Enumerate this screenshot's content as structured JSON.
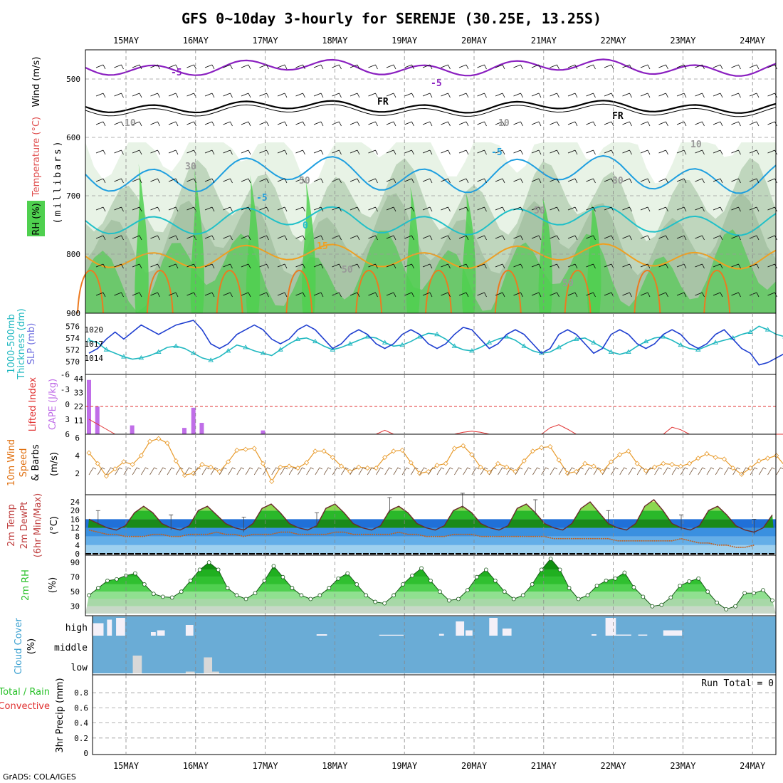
{
  "header": {
    "title": "GFS 0~10day 3-hourly for SERENJE (30.25E, 13.25S)",
    "credit": "GrADS: COLA/IGES"
  },
  "dates": [
    "15MAY",
    "16MAY",
    "17MAY",
    "18MAY",
    "19MAY",
    "20MAY",
    "21MAY",
    "22MAY",
    "23MAY",
    "24MAY"
  ],
  "colors": {
    "rh_green": "#4fd04f",
    "slp": "#1f3fd0",
    "thickness": "#20b8c0",
    "cape": "#c06ee8",
    "lifted": "#e03030",
    "wind": "#e89a2a",
    "rh2m": "#2ac12a",
    "cloud": "#6aacd6",
    "precip_total": "#2ac12a",
    "precip_conv": "#e03030"
  },
  "panels": {
    "upper": {
      "labels": [
        "Wind (m/s)",
        "Temperature (°C)",
        "RH (%)"
      ],
      "axis_label": "(millibars)",
      "ticks": [
        "500",
        "600",
        "700",
        "800",
        "900"
      ],
      "contour_labels": [
        "-5",
        "-5",
        "FR",
        "FR",
        "10",
        "10",
        "10",
        "-5",
        "-5",
        "0",
        "15",
        "30",
        "30",
        "50",
        "50",
        "50",
        "50"
      ]
    },
    "slp": {
      "labels": [
        "1000-500mb",
        "Thickness (dm)",
        "SLP (mb)"
      ],
      "left_ticks": [
        "576",
        "574",
        "572",
        "570"
      ],
      "right_ticks": [
        "1020",
        "1017",
        "1014"
      ]
    },
    "cape": {
      "labels": [
        "Lifted Index",
        "CAPE (J/kg)"
      ],
      "left_ticks": [
        "-6",
        "-3",
        "0",
        "3",
        "6"
      ],
      "right_ticks": [
        "44",
        "33",
        "22",
        "11"
      ]
    },
    "wind10": {
      "labels": [
        "10m Wind",
        "Speed",
        "& Barbs",
        "(m/s)"
      ],
      "ticks": [
        "6",
        "4",
        "2"
      ]
    },
    "temp2m": {
      "labels": [
        "2m Temp",
        "2m DewPt",
        "(6hr Min/Max)",
        "(°C)"
      ],
      "ticks": [
        "24",
        "20",
        "16",
        "12",
        "8",
        "4",
        "0"
      ]
    },
    "rh2m": {
      "labels": [
        "2m RH",
        "(%)"
      ],
      "ticks": [
        "90",
        "70",
        "50",
        "30"
      ]
    },
    "cloud": {
      "labels": [
        "Cloud Cover",
        "(%)"
      ],
      "levels": [
        "high",
        "middle",
        "low"
      ]
    },
    "precip": {
      "labels": [
        "Total / Rain",
        "Convective",
        "3hr Precip (mm)"
      ],
      "ticks": [
        "0.8",
        "0.6",
        "0.4",
        "0.2",
        "0"
      ],
      "run_total": "Run Total = 0"
    }
  },
  "chart_data": [
    {
      "type": "line",
      "name": "SLP (mb)",
      "x_unit": "hours from start (3-hourly)",
      "ylim": [
        1012,
        1022
      ],
      "values": [
        1015,
        1016,
        1018,
        1019.5,
        1018,
        1019.5,
        1021,
        1020,
        1019,
        1020,
        1021,
        1021.5,
        1022,
        1020,
        1017,
        1016,
        1017,
        1019,
        1020,
        1021,
        1020,
        1018,
        1017,
        1018,
        1020,
        1021,
        1020,
        1018,
        1016,
        1017,
        1019,
        1020,
        1019,
        1017,
        1016,
        1017,
        1019,
        1020,
        1019,
        1017,
        1016,
        1017,
        1019,
        1020.5,
        1020,
        1018,
        1016,
        1017,
        1019,
        1020,
        1019,
        1017,
        1015,
        1016,
        1019,
        1020,
        1019,
        1017,
        1015,
        1016,
        1019,
        1020,
        1019,
        1017,
        1016,
        1017,
        1019,
        1020,
        1019,
        1017,
        1016,
        1017,
        1019,
        1020,
        1018,
        1016,
        1015,
        1012.5,
        1013,
        1014,
        1015,
        1015.5,
        1016,
        1016.5
      ]
    },
    {
      "type": "line",
      "name": "1000-500mb Thickness (dm)",
      "ylim": [
        569,
        577
      ],
      "values": [
        573.6,
        573.2,
        572,
        571.4,
        570.8,
        570.4,
        570.6,
        571,
        571.6,
        572.4,
        572.6,
        572.2,
        571.4,
        570.6,
        570.2,
        570.8,
        571.8,
        572.8,
        572.4,
        571.8,
        571.4,
        571,
        572,
        573,
        573.8,
        574,
        573.4,
        572.6,
        572,
        572.4,
        573,
        573.6,
        574.2,
        574,
        573.2,
        572.6,
        572.8,
        573.4,
        574.2,
        574.8,
        574.6,
        573.8,
        572.6,
        572,
        571.8,
        572.4,
        573.2,
        573.8,
        574.2,
        573.6,
        572.6,
        571.8,
        571.4,
        571.6,
        572.4,
        573.2,
        573.8,
        574,
        573.2,
        572.4,
        571.6,
        571.2,
        571.6,
        572.6,
        573.4,
        574,
        574.2,
        573.6,
        572.8,
        572.2,
        572,
        572.6,
        573.2,
        573.6,
        574,
        574.6,
        575,
        576,
        575.4,
        574.6,
        574.2,
        574,
        574.4,
        575.6
      ]
    },
    {
      "type": "bar",
      "name": "CAPE (J/kg)",
      "ylim": [
        0,
        44
      ],
      "bars": [
        {
          "day": 0.0,
          "v": 43
        },
        {
          "day": 0.12,
          "v": 22
        },
        {
          "day": 0.62,
          "v": 7
        },
        {
          "day": 1.37,
          "v": 5
        },
        {
          "day": 1.5,
          "v": 21
        },
        {
          "day": 1.62,
          "v": 9
        },
        {
          "day": 2.5,
          "v": 3
        }
      ]
    },
    {
      "type": "line",
      "name": "Lifted Index",
      "ylim": [
        -6,
        6
      ],
      "values": [
        3,
        4,
        5,
        6,
        6,
        6,
        6,
        6,
        6,
        6,
        6,
        6,
        6,
        6,
        6,
        6,
        6,
        6,
        6,
        6,
        6,
        6,
        6,
        6,
        6,
        6,
        6,
        6,
        6,
        6,
        6,
        6,
        6,
        6,
        5.2,
        6,
        6,
        6,
        6,
        6,
        6,
        6,
        6,
        5.6,
        5.4,
        5.6,
        6,
        6,
        6,
        6,
        6,
        6,
        6,
        4.7,
        4.1,
        5,
        6,
        6,
        6,
        6,
        6,
        6,
        6,
        6,
        6,
        6,
        6,
        4.6,
        5.1,
        6,
        6,
        6,
        6,
        6,
        6,
        6,
        6,
        6,
        6,
        6,
        6,
        6,
        6,
        6
      ]
    },
    {
      "type": "line",
      "name": "10m Wind Speed (m/s)",
      "ylim": [
        0,
        6
      ],
      "values": [
        4.3,
        3.1,
        1.7,
        2.5,
        3.3,
        3,
        4,
        5.6,
        5.9,
        5.4,
        3.4,
        1.8,
        2,
        3,
        2.7,
        2.2,
        3.3,
        4.6,
        4.7,
        4.8,
        3.1,
        1.1,
        2.7,
        2.8,
        2.6,
        3.2,
        4.5,
        4.5,
        3.8,
        2.8,
        2.2,
        2.7,
        2.6,
        2.6,
        3.8,
        4.5,
        4.6,
        3.2,
        2,
        2.2,
        2.9,
        3.1,
        4.8,
        5.1,
        4.1,
        2.7,
        2.1,
        3.1,
        2.7,
        2.2,
        3.4,
        4.5,
        4.9,
        5,
        3.5,
        2,
        2.2,
        3.1,
        2.8,
        2.2,
        3.3,
        4.1,
        4.5,
        3.1,
        2.3,
        2.7,
        3.1,
        3,
        2.8,
        3.1,
        3.7,
        4.2,
        3.8,
        3.6,
        2.6,
        1.9,
        2.6,
        3.4,
        3.7,
        4,
        2.8,
        1.3,
        1.9,
        2.3,
        2.4
      ]
    },
    {
      "type": "area",
      "name": "2m Temp (°C)",
      "ylim": [
        0,
        26
      ],
      "values": [
        16,
        14,
        12,
        11,
        13,
        19,
        22,
        19,
        14,
        12,
        11,
        13,
        20,
        22,
        18,
        14,
        12,
        11,
        14,
        21,
        23,
        19,
        14,
        12,
        11,
        13,
        21,
        23,
        19,
        14,
        12,
        11,
        13,
        20,
        22,
        19,
        14,
        12,
        11,
        13,
        20,
        22,
        19,
        14,
        12,
        11,
        13,
        21,
        23,
        19,
        14,
        12,
        11,
        14,
        21,
        24,
        19,
        14,
        12,
        11,
        14,
        22,
        25,
        20,
        14,
        12,
        11,
        13,
        20,
        22,
        18,
        13,
        11,
        10,
        12,
        18
      ]
    },
    {
      "type": "line",
      "name": "2m DewPt (°C)",
      "ylim": [
        0,
        26
      ],
      "values": [
        11,
        10,
        9,
        9,
        8,
        8,
        8,
        9,
        9,
        8,
        8,
        9,
        9,
        9,
        10,
        9,
        9,
        8,
        9,
        9,
        9,
        10,
        10,
        9,
        9,
        9,
        9,
        10,
        10,
        9,
        9,
        9,
        9,
        9,
        10,
        9,
        9,
        8,
        8,
        8,
        9,
        9,
        9,
        8,
        8,
        8,
        8,
        8,
        8,
        8,
        8,
        7,
        7,
        7,
        7,
        7,
        7,
        7,
        6,
        6,
        6,
        6,
        6,
        6,
        6,
        7,
        6,
        5,
        5,
        4,
        4,
        3,
        3,
        4
      ]
    },
    {
      "type": "area",
      "name": "2m RH (%)",
      "ylim": [
        20,
        95
      ],
      "values": [
        45,
        55,
        65,
        67,
        72,
        75,
        60,
        47,
        43,
        42,
        50,
        65,
        80,
        90,
        80,
        55,
        45,
        40,
        48,
        65,
        85,
        70,
        55,
        45,
        40,
        45,
        55,
        68,
        75,
        60,
        45,
        36,
        34,
        45,
        60,
        72,
        82,
        65,
        50,
        38,
        40,
        52,
        70,
        80,
        65,
        50,
        40,
        45,
        60,
        80,
        95,
        80,
        55,
        40,
        45,
        58,
        65,
        68,
        76,
        56,
        43,
        30,
        32,
        42,
        58,
        64,
        68,
        50,
        35,
        26,
        30,
        48,
        48,
        52,
        38
      ]
    },
    {
      "type": "bar",
      "name": "Cloud Cover (%)",
      "high_segments": [
        [
          0.06,
          0.24,
          70
        ],
        [
          0.29,
          0.36,
          90
        ],
        [
          0.42,
          0.55,
          100
        ],
        [
          0.92,
          0.99,
          20
        ],
        [
          1.01,
          1.12,
          30
        ],
        [
          1.42,
          1.53,
          60
        ],
        [
          3.3,
          3.45,
          8
        ],
        [
          4.2,
          4.55,
          5
        ],
        [
          5.06,
          5.13,
          10
        ],
        [
          5.3,
          5.42,
          80
        ],
        [
          5.44,
          5.54,
          30
        ],
        [
          5.78,
          5.9,
          100
        ],
        [
          5.97,
          6.1,
          40
        ],
        [
          7.25,
          7.32,
          8
        ],
        [
          7.45,
          7.6,
          100
        ],
        [
          7.6,
          7.82,
          6
        ],
        [
          7.92,
          8.05,
          6
        ],
        [
          8.28,
          8.55,
          30
        ]
      ],
      "low_segments": [
        [
          0.66,
          0.79,
          100
        ],
        [
          1.42,
          1.55,
          10
        ],
        [
          1.68,
          1.8,
          90
        ],
        [
          1.8,
          1.9,
          10
        ]
      ]
    },
    {
      "type": "bar",
      "name": "3hr Precip (mm)",
      "ylim": [
        0,
        1
      ],
      "values": []
    }
  ]
}
